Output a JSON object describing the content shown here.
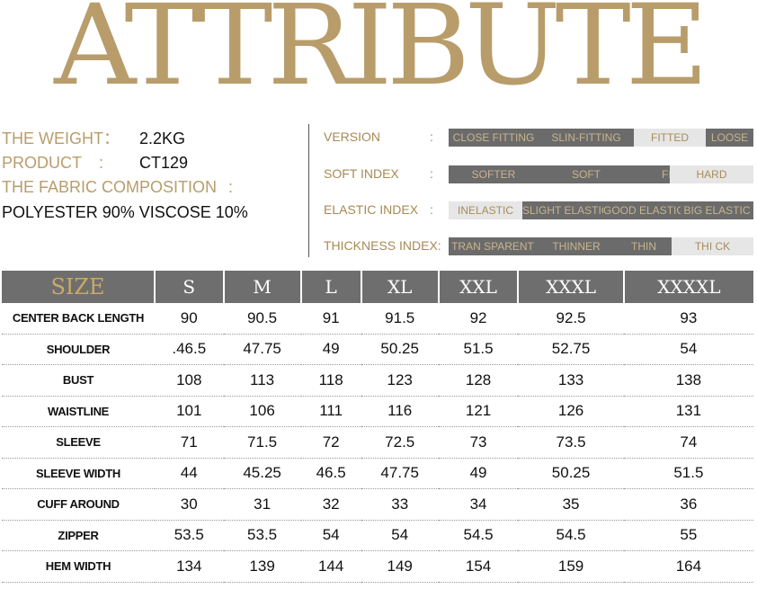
{
  "title": "ATTRIBUTE",
  "product_info": {
    "weight_label": "THE WEIGHT：",
    "weight_value": "2.2KG",
    "product_label": "PRODUCT",
    "product_colon": ":",
    "product_value": "CT129",
    "fabric_label": "THE FABRIC COMPOSITION",
    "fabric_colon": ":",
    "fabric_value": "POLYESTER 90%  VISCOSE 10%"
  },
  "attributes": [
    {
      "label": "VERSION",
      "colon": ":",
      "options": [
        "CLOSE FITTING",
        "SLIN-FITTING",
        "FITTED",
        "LOOSE"
      ],
      "selected": 2
    },
    {
      "label": "SOFT INDEX",
      "colon": ":",
      "options": [
        "SOFTER",
        "SOFT",
        "FIT",
        "HARD"
      ],
      "selected": 3
    },
    {
      "label": "ELASTIC INDEX",
      "colon": ":",
      "options": [
        "INELASTIC",
        "SLIGHT ELASTIC",
        "GOOD ELASTIC",
        "BIG ELASTIC"
      ],
      "selected": 0
    },
    {
      "label": "THICKNESS INDEX:",
      "colon": "",
      "options": [
        "TRAN SPARENT",
        "THINNER",
        "THIN",
        "THI CK"
      ],
      "selected": 3
    }
  ],
  "size_table": {
    "headers": [
      "SIZE",
      "S",
      "M",
      "L",
      "XL",
      "XXL",
      "XXXL",
      "XXXXL"
    ],
    "rows": [
      [
        "CENTER BACK LENGTH",
        "90",
        "90.5",
        "91",
        "91.5",
        "92",
        "92.5",
        "93"
      ],
      [
        "SHOULDER",
        ".46.5",
        "47.75",
        "49",
        "50.25",
        "51.5",
        "52.75",
        "54"
      ],
      [
        "BUST",
        "108",
        "113",
        "118",
        "123",
        "128",
        "133",
        "138"
      ],
      [
        "WAISTLINE",
        "101",
        "106",
        "111",
        "116",
        "121",
        "126",
        "131"
      ],
      [
        "SLEEVE",
        "71",
        "71.5",
        "72",
        "72.5",
        "73",
        "73.5",
        "74"
      ],
      [
        "SLEEVE WIDTH",
        "44",
        "45.25",
        "46.5",
        "47.75",
        "49",
        "50.25",
        "51.5"
      ],
      [
        "CUFF AROUND",
        "30",
        "31",
        "32",
        "33",
        "34",
        "35",
        "36"
      ],
      [
        "ZIPPER",
        "53.5",
        "53.5",
        "54",
        "54",
        "54.5",
        "54.5",
        "55"
      ],
      [
        "HEM WIDTH",
        "134",
        "139",
        "144",
        "149",
        "154",
        "159",
        "164"
      ]
    ]
  },
  "colors": {
    "gold": "#b89d6b",
    "dark_gray": "#6b6b6b",
    "light_gray": "#e6e6e6"
  }
}
